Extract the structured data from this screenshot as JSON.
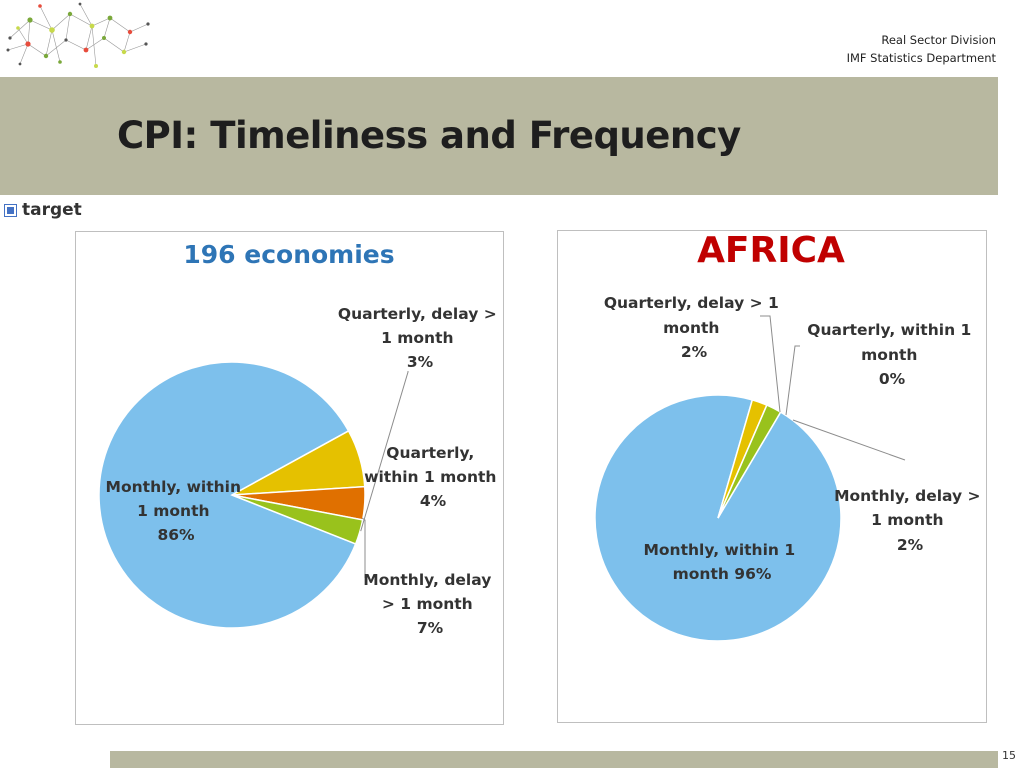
{
  "header": {
    "division": "Real Sector Division",
    "department": "IMF Statistics Department"
  },
  "slide": {
    "title": "CPI: Timeliness and Frequency",
    "target_label": "target",
    "page_number": "15"
  },
  "colors": {
    "monthly_within": "#7dc0ec",
    "monthly_delay": "#e5c100",
    "quarterly_within": "#e07000",
    "quarterly_delay": "#99c21c",
    "band": "#b8b8a0"
  },
  "chart_data": [
    {
      "type": "pie",
      "title": "196 economies",
      "slices": [
        {
          "name": "Monthly, within 1 month",
          "value": 86,
          "label_lines": [
            "Monthly, within",
            "1 month",
            "86%"
          ]
        },
        {
          "name": "Monthly, delay > 1 month",
          "value": 7,
          "label_lines": [
            "Monthly, delay",
            "> 1 month",
            "7%"
          ]
        },
        {
          "name": "Quarterly, within 1 month",
          "value": 4,
          "label_lines": [
            "Quarterly,",
            "within 1 month",
            "4%"
          ]
        },
        {
          "name": "Quarterly, delay > 1 month",
          "value": 3,
          "label_lines": [
            "Quarterly, delay >",
            "1 month",
            "3%"
          ]
        }
      ]
    },
    {
      "type": "pie",
      "title": "AFRICA",
      "slices": [
        {
          "name": "Monthly, within 1 month",
          "value": 96,
          "label_lines": [
            "Monthly, within 1",
            "month 96%"
          ]
        },
        {
          "name": "Monthly, delay > 1 month",
          "value": 2,
          "label_lines": [
            "Monthly, delay >",
            "1 month",
            "2%"
          ]
        },
        {
          "name": "Quarterly, within 1 month",
          "value": 0,
          "label_lines": [
            "Quarterly, within 1",
            "month",
            "0%"
          ]
        },
        {
          "name": "Quarterly, delay > 1 month",
          "value": 2,
          "label_lines": [
            "Quarterly, delay > 1",
            "month",
            "2%"
          ]
        }
      ]
    }
  ]
}
